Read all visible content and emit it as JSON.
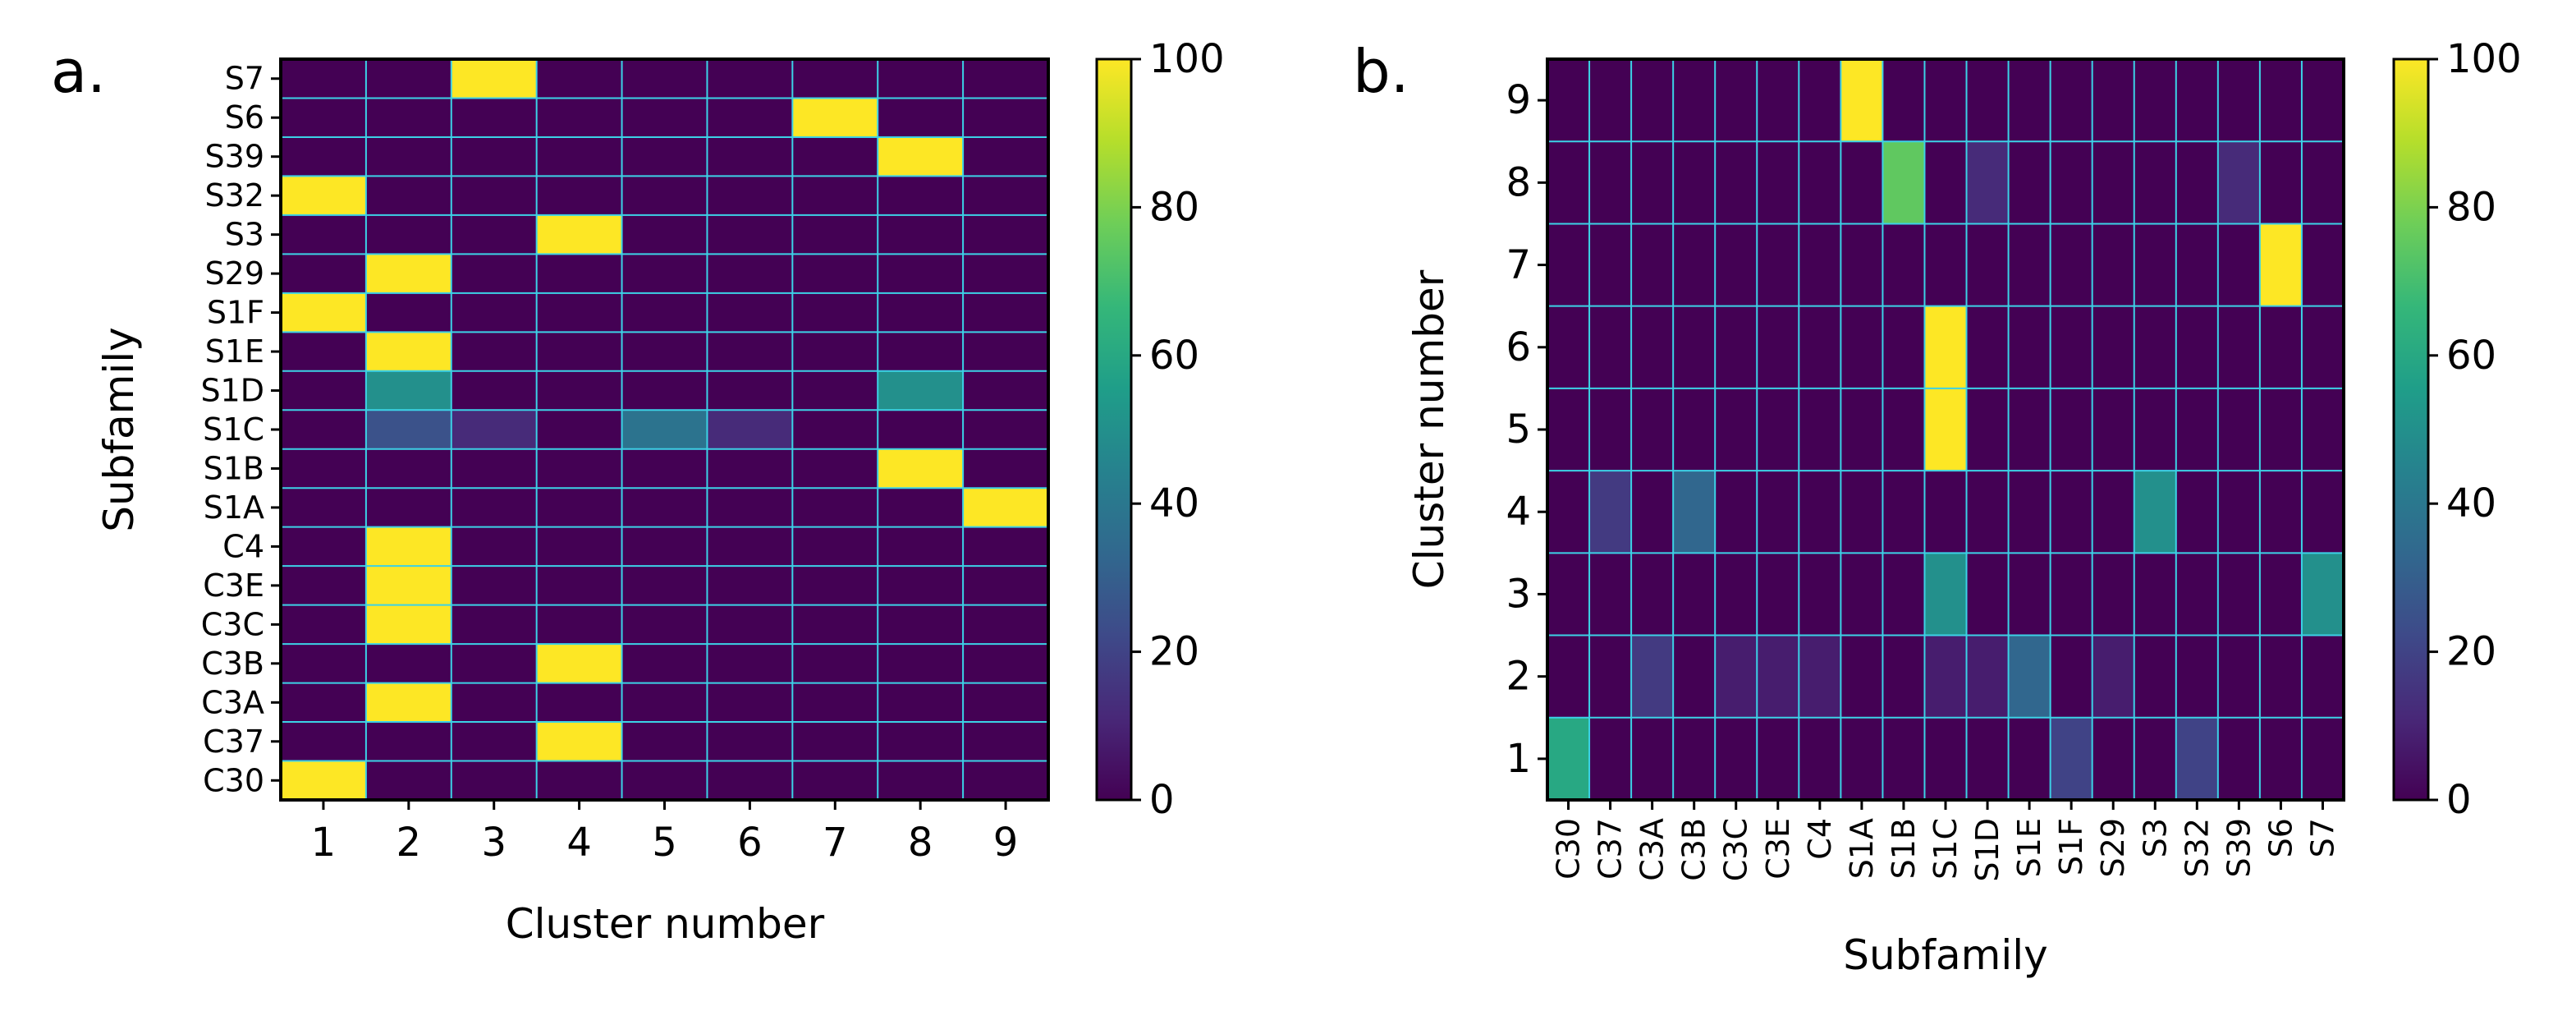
{
  "colors": {
    "viridis_stops": [
      "#440154",
      "#482878",
      "#3e4a89",
      "#31688e",
      "#26828e",
      "#1f9e89",
      "#35b779",
      "#6ece58",
      "#b5de2b",
      "#fde725"
    ],
    "grid_line": "#3cd2e6",
    "frame": "#000000"
  },
  "chart_data": [
    {
      "type": "heatmap",
      "panel_label": "a.",
      "xlabel": "Cluster number",
      "ylabel": "Subfamily",
      "x_categories": [
        "1",
        "2",
        "3",
        "4",
        "5",
        "6",
        "7",
        "8",
        "9"
      ],
      "y_categories": [
        "S7",
        "S6",
        "S39",
        "S32",
        "S3",
        "S29",
        "S1F",
        "S1E",
        "S1D",
        "S1C",
        "S1B",
        "S1A",
        "C4",
        "C3E",
        "C3C",
        "C3B",
        "C3A",
        "C37",
        "C30"
      ],
      "values": [
        [
          0,
          0,
          100,
          0,
          0,
          0,
          0,
          0,
          0
        ],
        [
          0,
          0,
          0,
          0,
          0,
          0,
          100,
          0,
          0
        ],
        [
          0,
          0,
          0,
          0,
          0,
          0,
          0,
          100,
          0
        ],
        [
          100,
          0,
          0,
          0,
          0,
          0,
          0,
          0,
          0
        ],
        [
          0,
          0,
          0,
          100,
          0,
          0,
          0,
          0,
          0
        ],
        [
          0,
          100,
          0,
          0,
          0,
          0,
          0,
          0,
          0
        ],
        [
          100,
          0,
          0,
          0,
          0,
          0,
          0,
          0,
          0
        ],
        [
          0,
          100,
          0,
          0,
          0,
          0,
          0,
          0,
          0
        ],
        [
          0,
          50,
          0,
          0,
          0,
          0,
          0,
          50,
          0
        ],
        [
          0,
          25,
          12,
          0,
          38,
          12,
          0,
          0,
          0
        ],
        [
          0,
          0,
          0,
          0,
          0,
          0,
          0,
          100,
          0
        ],
        [
          0,
          0,
          0,
          0,
          0,
          0,
          0,
          0,
          100
        ],
        [
          0,
          100,
          0,
          0,
          0,
          0,
          0,
          0,
          0
        ],
        [
          0,
          100,
          0,
          0,
          0,
          0,
          0,
          0,
          0
        ],
        [
          0,
          100,
          0,
          0,
          0,
          0,
          0,
          0,
          0
        ],
        [
          0,
          0,
          0,
          100,
          0,
          0,
          0,
          0,
          0
        ],
        [
          0,
          100,
          0,
          0,
          0,
          0,
          0,
          0,
          0
        ],
        [
          0,
          0,
          0,
          100,
          0,
          0,
          0,
          0,
          0
        ],
        [
          100,
          0,
          0,
          0,
          0,
          0,
          0,
          0,
          0
        ]
      ],
      "colorbar": {
        "range": [
          0,
          100
        ],
        "ticks": [
          0,
          20,
          40,
          60,
          80,
          100
        ]
      }
    },
    {
      "type": "heatmap",
      "panel_label": "b.",
      "xlabel": "Subfamily",
      "ylabel": "Cluster number",
      "x_categories": [
        "C30",
        "C37",
        "C3A",
        "C3B",
        "C3C",
        "C3E",
        "C4",
        "S1A",
        "S1B",
        "S1C",
        "S1D",
        "S1E",
        "S1F",
        "S29",
        "S3",
        "S32",
        "S39",
        "S6",
        "S7"
      ],
      "y_categories": [
        "9",
        "8",
        "7",
        "6",
        "5",
        "4",
        "3",
        "2",
        "1"
      ],
      "values": [
        [
          0,
          0,
          0,
          0,
          0,
          0,
          0,
          100,
          0,
          0,
          0,
          0,
          0,
          0,
          0,
          0,
          0,
          0,
          0
        ],
        [
          0,
          0,
          0,
          0,
          0,
          0,
          0,
          0,
          75,
          0,
          12,
          0,
          0,
          0,
          0,
          0,
          12,
          0,
          0
        ],
        [
          0,
          0,
          0,
          0,
          0,
          0,
          0,
          0,
          0,
          0,
          0,
          0,
          0,
          0,
          0,
          0,
          0,
          100,
          0
        ],
        [
          0,
          0,
          0,
          0,
          0,
          0,
          0,
          0,
          0,
          100,
          0,
          0,
          0,
          0,
          0,
          0,
          0,
          0,
          0
        ],
        [
          0,
          0,
          0,
          0,
          0,
          0,
          0,
          0,
          0,
          100,
          0,
          0,
          0,
          0,
          0,
          0,
          0,
          0,
          0
        ],
        [
          0,
          17,
          0,
          33,
          0,
          0,
          0,
          0,
          0,
          0,
          0,
          0,
          0,
          0,
          50,
          0,
          0,
          0,
          0
        ],
        [
          0,
          0,
          0,
          0,
          0,
          0,
          0,
          0,
          0,
          50,
          0,
          0,
          0,
          0,
          0,
          0,
          0,
          0,
          50
        ],
        [
          0,
          0,
          17,
          0,
          8,
          8,
          8,
          0,
          0,
          8,
          8,
          33,
          0,
          8,
          0,
          0,
          0,
          0,
          0
        ],
        [
          60,
          0,
          0,
          0,
          0,
          0,
          0,
          0,
          0,
          0,
          0,
          0,
          20,
          0,
          0,
          20,
          0,
          0,
          0
        ]
      ],
      "colorbar": {
        "range": [
          0,
          100
        ],
        "ticks": [
          0,
          20,
          40,
          60,
          80,
          100
        ]
      }
    }
  ]
}
